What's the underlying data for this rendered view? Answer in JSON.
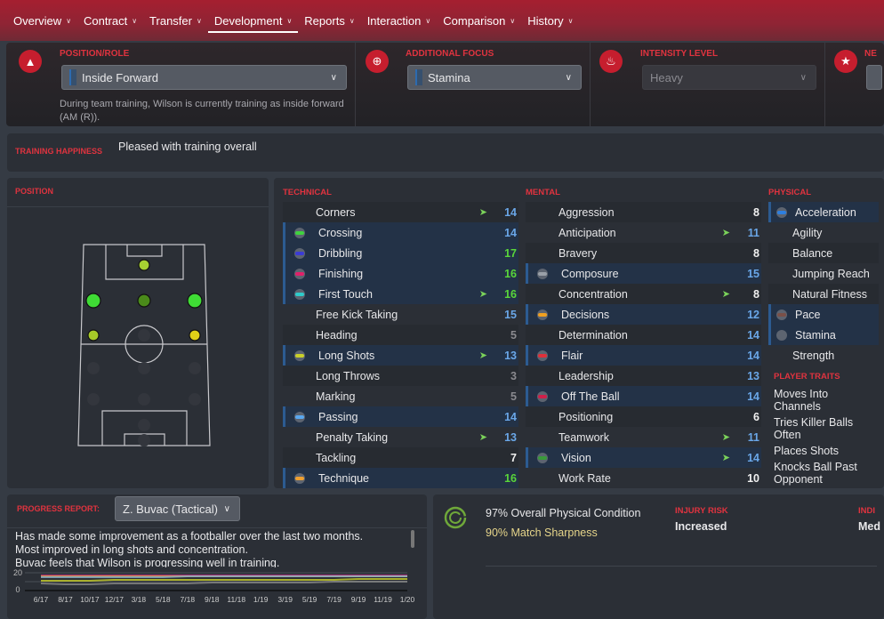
{
  "nav": [
    {
      "label": "Overview"
    },
    {
      "label": "Contract"
    },
    {
      "label": "Transfer"
    },
    {
      "label": "Development",
      "active": true
    },
    {
      "label": "Reports"
    },
    {
      "label": "Interaction"
    },
    {
      "label": "Comparison"
    },
    {
      "label": "History"
    }
  ],
  "training": {
    "position_role": {
      "label": "POSITION/ROLE",
      "value": "Inside Forward",
      "icon": "cone-icon",
      "description": "During team training, Wilson is currently training as inside forward (AM (R))."
    },
    "additional_focus": {
      "label": "ADDITIONAL FOCUS",
      "value": "Stamina",
      "icon": "crosshair-icon"
    },
    "intensity": {
      "label": "INTENSITY LEVEL",
      "value": "Heavy",
      "icon": "flame-icon"
    },
    "fourth": {
      "label": "NE",
      "icon": "star-icon"
    }
  },
  "happiness": {
    "label": "TRAINING HAPPINESS",
    "value": "Pleased with training overall"
  },
  "position_panel": {
    "label": "POSITION"
  },
  "colors": {
    "accent": "#e0333f",
    "highlight_row": "#233247",
    "value_blue": "#6aa7e8",
    "value_green": "#59d63a",
    "trend_arrow": "#7bd35a"
  },
  "technical": {
    "label": "TECHNICAL",
    "rows": [
      {
        "name": "Corners",
        "value": "14",
        "up": true,
        "hl": false,
        "c": "b"
      },
      {
        "name": "Crossing",
        "value": "14",
        "hl": true,
        "dot": "#3fd33f",
        "c": "b"
      },
      {
        "name": "Dribbling",
        "value": "17",
        "hl": true,
        "dot": "#3b3bd6",
        "c": "gr"
      },
      {
        "name": "Finishing",
        "value": "16",
        "hl": true,
        "dot": "#e0206a",
        "c": "gr"
      },
      {
        "name": "First Touch",
        "value": "16",
        "up": true,
        "hl": true,
        "dot": "#2ecbcb",
        "c": "gr"
      },
      {
        "name": "Free Kick Taking",
        "value": "15",
        "hl": false,
        "c": "b"
      },
      {
        "name": "Heading",
        "value": "5",
        "hl": false,
        "c": "g"
      },
      {
        "name": "Long Shots",
        "value": "13",
        "up": true,
        "hl": true,
        "dot": "#c9d02a",
        "c": "b"
      },
      {
        "name": "Long Throws",
        "value": "3",
        "hl": false,
        "c": "g"
      },
      {
        "name": "Marking",
        "value": "5",
        "hl": false,
        "c": "g"
      },
      {
        "name": "Passing",
        "value": "14",
        "hl": true,
        "dot": "#5aa8f0",
        "c": "b"
      },
      {
        "name": "Penalty Taking",
        "value": "13",
        "up": true,
        "hl": false,
        "c": "b"
      },
      {
        "name": "Tackling",
        "value": "7",
        "hl": false,
        "c": "w"
      },
      {
        "name": "Technique",
        "value": "16",
        "hl": true,
        "dot": "#f0a030",
        "c": "gr"
      }
    ]
  },
  "mental": {
    "label": "MENTAL",
    "rows": [
      {
        "name": "Aggression",
        "value": "8",
        "hl": false,
        "c": "w"
      },
      {
        "name": "Anticipation",
        "value": "11",
        "up": true,
        "hl": false,
        "c": "b"
      },
      {
        "name": "Bravery",
        "value": "8",
        "hl": false,
        "c": "w"
      },
      {
        "name": "Composure",
        "value": "15",
        "hl": true,
        "dot": "#9aa0a8",
        "c": "b"
      },
      {
        "name": "Concentration",
        "value": "8",
        "up": true,
        "hl": false,
        "c": "w"
      },
      {
        "name": "Decisions",
        "value": "12",
        "hl": true,
        "dot": "#f0a020",
        "c": "b"
      },
      {
        "name": "Determination",
        "value": "14",
        "hl": false,
        "c": "b"
      },
      {
        "name": "Flair",
        "value": "14",
        "hl": true,
        "dot": "#e0303a",
        "c": "b"
      },
      {
        "name": "Leadership",
        "value": "13",
        "hl": false,
        "c": "b"
      },
      {
        "name": "Off The Ball",
        "value": "14",
        "hl": true,
        "dot": "#d0204a",
        "c": "b"
      },
      {
        "name": "Positioning",
        "value": "6",
        "hl": false,
        "c": "w"
      },
      {
        "name": "Teamwork",
        "value": "11",
        "up": true,
        "hl": false,
        "c": "b"
      },
      {
        "name": "Vision",
        "value": "14",
        "up": true,
        "hl": true,
        "dot": "#3a9a3a",
        "c": "b"
      },
      {
        "name": "Work Rate",
        "value": "10",
        "hl": false,
        "c": "w"
      }
    ]
  },
  "physical": {
    "label": "PHYSICAL",
    "rows": [
      {
        "name": "Acceleration",
        "hl": true,
        "dot": "#2d7fe0"
      },
      {
        "name": "Agility",
        "hl": false
      },
      {
        "name": "Balance",
        "hl": false
      },
      {
        "name": "Jumping Reach",
        "hl": false
      },
      {
        "name": "Natural Fitness",
        "hl": false
      },
      {
        "name": "Pace",
        "hl": true,
        "dot": "#7a5048"
      },
      {
        "name": "Stamina",
        "hl": true,
        "dot": "#5d6470"
      },
      {
        "name": "Strength",
        "hl": false
      }
    ]
  },
  "traits": {
    "label": "PLAYER TRAITS",
    "items": [
      "Moves Into Channels",
      "Tries Killer Balls Often",
      "Places Shots",
      "Knocks Ball Past Opponent"
    ]
  },
  "progress": {
    "label": "PROGRESS REPORT:",
    "coach": "Z. Buvac (Tactical)",
    "text": [
      "Has made some improvement as a footballer over the last two months.",
      "Most improved in long shots and concentration.",
      "Buvac feels that Wilson is progressing well in training."
    ]
  },
  "condition": {
    "physical": "97% Overall Physical Condition",
    "physical_pct": 97,
    "sharpness": "90% Match Sharpness",
    "injury_label": "INJURY RISK",
    "injury_value": "Increased",
    "indiv_label": "INDI",
    "indiv_value": "Med"
  },
  "chart_data": {
    "type": "line",
    "ylim": [
      0,
      20
    ],
    "yticks": [
      "20",
      "0"
    ],
    "categories": [
      "6/17",
      "8/17",
      "10/17",
      "12/17",
      "3/18",
      "5/18",
      "7/18",
      "9/18",
      "11/18",
      "1/19",
      "3/19",
      "5/19",
      "7/19",
      "9/19",
      "11/19",
      "1/20"
    ],
    "series": [
      {
        "color": "#c0308a",
        "values": [
          17,
          17,
          17,
          17,
          17,
          17,
          17,
          17,
          17,
          17,
          17,
          17,
          17,
          17,
          17,
          17
        ]
      },
      {
        "color": "#e0a040",
        "values": [
          16,
          16,
          16,
          16,
          16,
          16,
          16,
          16,
          16,
          16,
          16,
          16,
          16,
          16,
          16,
          16
        ]
      },
      {
        "color": "#8ab0c8",
        "values": [
          15,
          15,
          15,
          15,
          15,
          15,
          16,
          16,
          16,
          16,
          16,
          16,
          16,
          16,
          16,
          16
        ]
      },
      {
        "color": "#c9d02a",
        "values": [
          11,
          11,
          11,
          12,
          12,
          12,
          12,
          12,
          12,
          12,
          12,
          12,
          12,
          13,
          13,
          13
        ]
      },
      {
        "color": "#888888",
        "values": [
          8,
          7,
          7,
          8,
          8,
          8,
          8,
          9,
          9,
          9,
          9,
          9,
          10,
          10,
          10,
          10
        ]
      }
    ]
  }
}
